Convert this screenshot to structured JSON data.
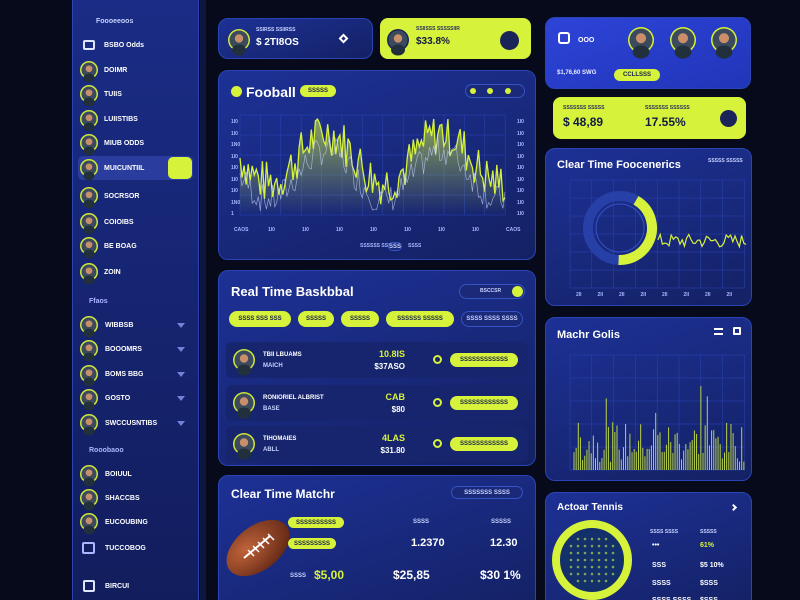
{
  "sidebar": {
    "header": "Foooeeoos",
    "items": [
      "BSBO Odds",
      "DOIMR",
      "TUIIS",
      "LUIISTIBS",
      "MIUB ODDS",
      "MUICUNTIIL",
      "SOCRSOR",
      "COIOIBS",
      "BE BOAG",
      "ZOIN"
    ],
    "section1": {
      "title": "Ffaos",
      "items": [
        "WIBBSB",
        "BOOOMRS",
        "BOMS BBG",
        "GOSTO",
        "SWCCUSNTIBS"
      ]
    },
    "section2": {
      "title": "Rooobaoo",
      "items": [
        "BOIUUL",
        "SHACCBS",
        "EUCOUBING",
        "TUCCOBOG"
      ]
    },
    "footer": "BIRCUI"
  },
  "top_cards": [
    {
      "label": "SSIRSS SSIIRSS",
      "value": "$ 2TI8OS"
    },
    {
      "label": "SSIISSS SSSSSIIR",
      "value": "$33.8%"
    }
  ],
  "summary": {
    "label": "OOO",
    "value": "$1,76,60 SWG",
    "button": "CCLLSSS"
  },
  "stats": [
    {
      "label": "SSSSSSS SSSSS",
      "value": "$ 48,89"
    },
    {
      "label": "SSSSSSS SSSSSS",
      "value": "17.55%"
    }
  ],
  "football": {
    "title": "Fooball",
    "badge": "SSSSS",
    "y_left": [
      "1I0",
      "1I0",
      "1N0",
      "1I0",
      "1I0",
      "1I0",
      "1I0",
      "1N0",
      "1"
    ],
    "y_right": [
      "1I0",
      "1I0",
      "1I0",
      "1I0",
      "1I0",
      "1I0",
      "1I0",
      "1I0",
      "1I0"
    ],
    "x": [
      "CAOS",
      "1I0",
      "1I0",
      "1I0",
      "1I0",
      "1I0",
      "1I0",
      "1I0",
      "CAOS"
    ],
    "legend": [
      "SSSSSS SSS",
      "SSS",
      "SSSS"
    ]
  },
  "basketball": {
    "title": "Real Time Baskbbal",
    "toggle": "BSCCSR",
    "tabs": [
      "SSSS SSS SSS",
      "SSSSS",
      "SSSSS",
      "SSSSSS SSSSS",
      "SSSS SSSS SSSS"
    ],
    "rows": [
      {
        "name": "TBII LBUAMS",
        "sub": "MAICH",
        "odds": "10.8IS",
        "amount": "$37ASO",
        "button": "SSSSSSSSSSSS"
      },
      {
        "name": "RONIORIEL ALBRIST",
        "sub": "BASE",
        "odds": "CAB",
        "amount": "$80",
        "button": "SSSSSSSSSSSS"
      },
      {
        "name": "TIHOMAIES",
        "sub": "ABLL",
        "odds": "4LAS",
        "amount": "$31.80",
        "button": "SSSSSSSSSSSS"
      }
    ]
  },
  "match": {
    "title": "Clear Time Matchr",
    "badge": "SSSSSSS SSSS",
    "tags": [
      "SSSSSSSSSS",
      "SSSSSSSSS"
    ],
    "columns": [
      "SSSS",
      "SSSSS"
    ],
    "values": [
      "1.2370",
      "12.30"
    ],
    "total_label": "SSSS",
    "totals": [
      "$5,00",
      "$25,85",
      "$30 1%"
    ]
  },
  "frequency": {
    "title": "Clear Time Foocenerics",
    "badge": "SSSSS SSSSS",
    "x": [
      "2II",
      "2II",
      "2II",
      "2II",
      "2II",
      "2II",
      "2II",
      "2II"
    ]
  },
  "goals": {
    "title": "Machr Golis"
  },
  "tennis": {
    "title": "Actoar Tennis",
    "header": [
      "SSSS SSSS",
      "SSSSS"
    ],
    "rows": [
      [
        "•••",
        "61%"
      ],
      [
        "SSS",
        "$5 10%"
      ],
      [
        "SSSS",
        "$SSS"
      ],
      [
        "SSSS SSSS",
        "$SSS"
      ]
    ]
  }
}
